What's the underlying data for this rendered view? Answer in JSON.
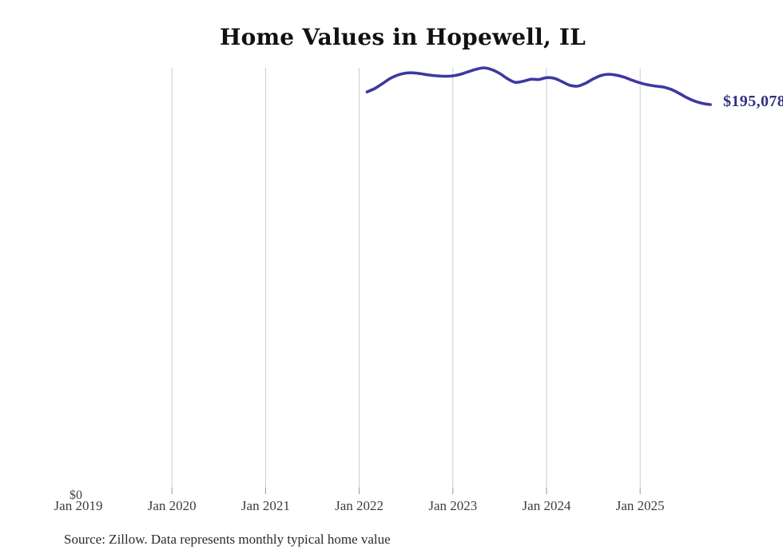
{
  "chart": {
    "title": "Home Values in Hopewell, IL",
    "y_zero_label": "$0",
    "current_value_label": "$195,078",
    "source_note": "Source: Zillow. Data represents monthly typical home value",
    "colors": {
      "line": "#3e38a1",
      "value_label": "#343083",
      "gridline": "#cccccc",
      "tick": "#999999",
      "axis_label": "#3d3d3d",
      "title": "#111111",
      "source": "#2b2b2b",
      "background": "#ffffff"
    }
  },
  "chart_data": {
    "type": "line",
    "title": "Home Values in Hopewell, IL",
    "xlabel": "",
    "ylabel": "",
    "x_interval": "monthly",
    "ylim": [
      0,
      213400
    ],
    "grid": "vertical-only",
    "legend": "none",
    "x_tick_labels": [
      "Jan 2019",
      "Jan 2020",
      "Jan 2021",
      "Jan 2022",
      "Jan 2023",
      "Jan 2024",
      "Jan 2025"
    ],
    "x_ticks_with_gridline": [
      "Jan 2020",
      "Jan 2021",
      "Jan 2022",
      "Jan 2023",
      "Jan 2024",
      "Jan 2025"
    ],
    "end_label": "$195,078",
    "source": "Source: Zillow. Data represents monthly typical home value",
    "series": [
      {
        "name": "Monthly typical home value",
        "x": [
          "Feb 2022",
          "Mar 2022",
          "Apr 2022",
          "May 2022",
          "Jun 2022",
          "Jul 2022",
          "Aug 2022",
          "Sep 2022",
          "Oct 2022",
          "Nov 2022",
          "Dec 2022",
          "Jan 2023",
          "Feb 2023",
          "Mar 2023",
          "Apr 2023",
          "May 2023",
          "Jun 2023",
          "Jul 2023",
          "Aug 2023",
          "Sep 2023",
          "Oct 2023",
          "Nov 2023",
          "Dec 2023",
          "Jan 2024",
          "Feb 2024",
          "Mar 2024",
          "Apr 2024",
          "May 2024",
          "Jun 2024",
          "Jul 2024",
          "Aug 2024",
          "Sep 2024",
          "Oct 2024",
          "Nov 2024",
          "Dec 2024",
          "Jan 2025",
          "Feb 2025",
          "Mar 2025",
          "Apr 2025",
          "May 2025",
          "Jun 2025",
          "Jul 2025",
          "Aug 2025",
          "Sep 2025",
          "Oct 2025"
        ],
        "values": [
          201400,
          203100,
          205600,
          208200,
          209900,
          210800,
          210900,
          210400,
          209800,
          209400,
          209200,
          209400,
          210200,
          211500,
          212700,
          213400,
          212500,
          210600,
          208000,
          206200,
          206700,
          207700,
          207600,
          208500,
          208200,
          206500,
          204700,
          204300,
          205700,
          207900,
          209600,
          210200,
          209700,
          208700,
          207200,
          205900,
          204900,
          204300,
          203800,
          202600,
          200700,
          198500,
          196800,
          195700,
          195078
        ]
      }
    ]
  }
}
